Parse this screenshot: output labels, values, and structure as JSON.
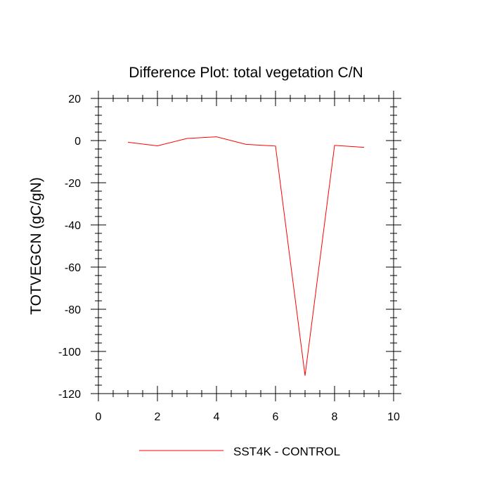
{
  "chart_data": {
    "type": "line",
    "title": "Difference Plot: total vegetation C/N",
    "xlabel": "",
    "ylabel": "TOTVEGCN  (gC/gN)",
    "xlim": [
      0,
      10
    ],
    "ylim": [
      -120,
      20
    ],
    "x_ticks": [
      0,
      2,
      4,
      6,
      8,
      10
    ],
    "y_ticks": [
      20,
      0,
      -20,
      -40,
      -60,
      -80,
      -100,
      -120
    ],
    "x_minor_step": 0.5,
    "y_minor_step": 4,
    "grid": false,
    "series": [
      {
        "name": "SST4K - CONTROL",
        "color": "#ff0000",
        "x": [
          1,
          2,
          3,
          4,
          5,
          6,
          7,
          8,
          9
        ],
        "values": [
          -0.8,
          -2.5,
          1.0,
          1.8,
          -1.8,
          -2.6,
          -111.5,
          -2.3,
          -3.2
        ]
      }
    ],
    "legend": {
      "placement": "bottom-center",
      "entries": [
        "SST4K - CONTROL"
      ]
    }
  }
}
